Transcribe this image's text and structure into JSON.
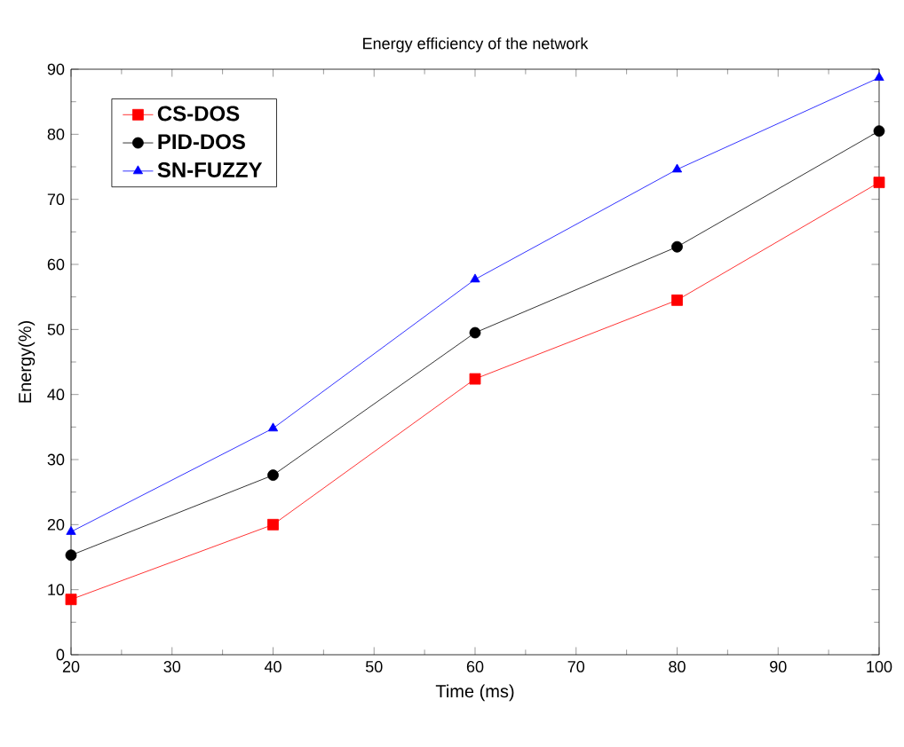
{
  "chart_data": {
    "type": "line",
    "title": "Energy efficiency of the network",
    "xlabel": "Time (ms)",
    "ylabel": "Energy(%)",
    "x": [
      20,
      40,
      60,
      80,
      100
    ],
    "series": [
      {
        "name": "CS-DOS",
        "color": "#ff0000",
        "marker": "square",
        "values": [
          8.5,
          20,
          42.4,
          54.5,
          72.6
        ]
      },
      {
        "name": "PID-DOS",
        "color": "#000000",
        "marker": "circle",
        "values": [
          15.3,
          27.6,
          49.5,
          62.7,
          80.5
        ]
      },
      {
        "name": "SN-FUZZY",
        "color": "#0000ff",
        "marker": "triangle",
        "values": [
          18.9,
          34.8,
          57.7,
          74.6,
          88.7
        ]
      }
    ],
    "xlim": [
      20,
      100
    ],
    "xticks": [
      20,
      30,
      40,
      50,
      60,
      70,
      80,
      90,
      100
    ],
    "ylim": [
      0,
      90
    ],
    "yticks": [
      0,
      10,
      20,
      30,
      40,
      50,
      60,
      70,
      80,
      90
    ],
    "grid": false,
    "legend": "top left"
  }
}
